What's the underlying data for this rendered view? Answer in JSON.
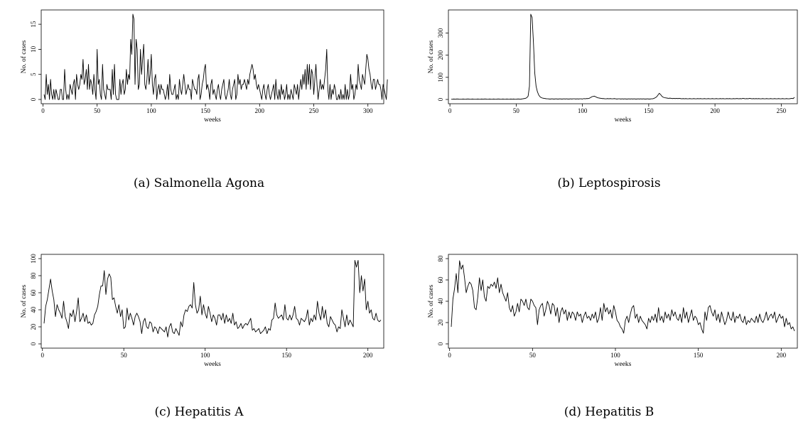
{
  "charts": [
    {
      "caption": "(a) Salmonella Agona",
      "chart_data": {
        "type": "line",
        "xlabel": "weeks",
        "ylabel": "No. of cases",
        "xlim": [
          1,
          312
        ],
        "ylim": [
          0,
          17
        ],
        "xticks": [
          0,
          50,
          100,
          150,
          200,
          250,
          300
        ],
        "yticks": [
          0,
          5,
          10,
          15
        ],
        "grid": false,
        "series": [
          {
            "values": [
              1,
              0,
              5,
              1,
              3,
              0,
              4,
              1,
              0,
              2,
              0,
              2,
              1,
              0,
              0,
              2,
              2,
              0,
              0,
              6,
              2,
              0,
              1,
              0,
              3,
              2,
              1,
              3,
              4,
              0,
              5,
              3,
              2,
              3,
              5,
              4,
              8,
              3,
              4,
              6,
              2,
              7,
              2,
              4,
              3,
              1,
              5,
              2,
              0,
              10,
              3,
              4,
              1,
              0,
              7,
              2,
              1,
              0,
              3,
              2,
              2,
              2,
              0,
              6,
              1,
              7,
              1,
              0,
              0,
              0,
              4,
              1,
              3,
              4,
              1,
              2,
              6,
              3,
              5,
              4,
              12,
              9,
              17,
              16,
              3,
              12,
              10,
              2,
              3,
              10,
              5,
              8,
              11,
              3,
              2,
              4,
              8,
              3,
              5,
              9,
              3,
              1,
              4,
              5,
              0,
              2,
              3,
              1,
              3,
              2,
              2,
              1,
              0,
              1,
              3,
              0,
              5,
              2,
              1,
              1,
              2,
              3,
              0,
              1,
              0,
              4,
              2,
              1,
              3,
              5,
              3,
              1,
              2,
              3,
              2,
              2,
              0,
              4,
              3,
              2,
              2,
              1,
              4,
              5,
              0,
              1,
              3,
              4,
              6,
              7,
              2,
              3,
              2,
              0,
              3,
              4,
              1,
              2,
              1,
              0,
              2,
              3,
              1,
              0,
              2,
              3,
              4,
              1,
              0,
              1,
              2,
              4,
              1,
              0,
              2,
              3,
              4,
              0,
              1,
              5,
              3,
              4,
              2,
              3,
              3,
              4,
              3,
              2,
              4,
              3,
              5,
              6,
              7,
              6,
              4,
              5,
              3,
              2,
              3,
              2,
              1,
              0,
              2,
              3,
              1,
              0,
              2,
              3,
              1,
              0,
              1,
              2,
              3,
              0,
              4,
              1,
              0,
              2,
              0,
              3,
              1,
              2,
              0,
              1,
              3,
              0,
              1,
              0,
              2,
              1,
              0,
              3,
              2,
              1,
              3,
              0,
              2,
              4,
              2,
              5,
              3,
              6,
              2,
              7,
              3,
              7,
              2,
              6,
              5,
              1,
              4,
              7,
              3,
              0,
              2,
              4,
              2,
              3,
              2,
              4,
              6,
              10,
              2,
              0,
              3,
              0,
              2,
              1,
              3,
              2,
              0,
              0,
              1,
              0,
              2,
              0,
              1,
              0,
              3,
              0,
              2,
              0,
              1,
              5,
              2,
              3,
              0,
              1,
              3,
              2,
              7,
              4,
              3,
              2,
              5,
              4,
              3,
              6,
              9,
              8,
              6,
              5,
              3,
              2,
              4,
              4,
              2,
              3,
              4,
              3,
              3,
              2,
              0,
              3,
              2,
              1,
              0,
              4
            ]
          }
        ]
      }
    },
    {
      "caption": "(b) Leptospirosis",
      "chart_data": {
        "type": "line",
        "xlabel": "weeks",
        "ylabel": "No. of cases",
        "xlim": [
          1,
          260
        ],
        "ylim": [
          0,
          385
        ],
        "xticks": [
          0,
          50,
          100,
          150,
          200,
          250
        ],
        "yticks": [
          0,
          100,
          200,
          300
        ],
        "grid": false,
        "series": [
          {
            "values": [
              1,
              1,
              2,
              1,
              2,
              2,
              1,
              1,
              1,
              2,
              1,
              1,
              2,
              2,
              1,
              1,
              2,
              1,
              1,
              1,
              2,
              1,
              1,
              2,
              1,
              2,
              2,
              1,
              1,
              2,
              1,
              1,
              2,
              1,
              1,
              2,
              2,
              1,
              1,
              2,
              1,
              1,
              2,
              1,
              1,
              2,
              1,
              2,
              1,
              1,
              2,
              2,
              1,
              2,
              3,
              4,
              5,
              8,
              15,
              60,
              385,
              370,
              260,
              120,
              60,
              35,
              20,
              12,
              8,
              6,
              5,
              4,
              3,
              3,
              2,
              2,
              3,
              2,
              2,
              3,
              2,
              2,
              3,
              2,
              2,
              3,
              2,
              3,
              2,
              2,
              3,
              2,
              3,
              3,
              2,
              3,
              2,
              3,
              3,
              2,
              4,
              3,
              4,
              4,
              5,
              8,
              12,
              14,
              15,
              12,
              9,
              7,
              6,
              5,
              4,
              4,
              3,
              3,
              4,
              3,
              4,
              3,
              3,
              4,
              3,
              2,
              3,
              3,
              2,
              3,
              2,
              3,
              2,
              2,
              3,
              2,
              3,
              2,
              3,
              2,
              2,
              3,
              2,
              3,
              2,
              3,
              2,
              2,
              3,
              2,
              2,
              3,
              3,
              5,
              8,
              12,
              20,
              28,
              22,
              14,
              10,
              8,
              7,
              6,
              5,
              6,
              5,
              4,
              5,
              4,
              5,
              4,
              5,
              4,
              3,
              4,
              3,
              4,
              3,
              3,
              4,
              3,
              3,
              4,
              3,
              3,
              4,
              3,
              4,
              3,
              3,
              4,
              3,
              3,
              4,
              3,
              3,
              4,
              3,
              3,
              4,
              3,
              3,
              4,
              3,
              4,
              3,
              3,
              4,
              3,
              4,
              3,
              3,
              4,
              3,
              4,
              4,
              3,
              4,
              3,
              5,
              4,
              3,
              4,
              3,
              5,
              4,
              3,
              4,
              3,
              4,
              3,
              4,
              3,
              3,
              4,
              3,
              3,
              4,
              3,
              3,
              4,
              3,
              3,
              4,
              3,
              3,
              4,
              3,
              3,
              4,
              3,
              3,
              4,
              3,
              3,
              4,
              5,
              4,
              10
            ]
          }
        ]
      }
    },
    {
      "caption": "(c) Hepatitis A",
      "chart_data": {
        "type": "line",
        "xlabel": "weeks",
        "ylabel": "No. of cases",
        "xlim": [
          1,
          208
        ],
        "ylim": [
          0,
          100
        ],
        "xticks": [
          0,
          50,
          100,
          150,
          200
        ],
        "yticks": [
          0,
          20,
          40,
          60,
          80,
          100
        ],
        "grid": false,
        "series": [
          {
            "values": [
              24,
              44,
              52,
              64,
              76,
              62,
              52,
              32,
              46,
              40,
              36,
              30,
              50,
              32,
              26,
              18,
              36,
              32,
              40,
              26,
              38,
              54,
              26,
              30,
              36,
              26,
              34,
              24,
              26,
              22,
              24,
              34,
              38,
              44,
              58,
              68,
              68,
              86,
              58,
              76,
              82,
              78,
              52,
              54,
              44,
              36,
              46,
              32,
              40,
              18,
              20,
              42,
              28,
              36,
              30,
              22,
              32,
              36,
              32,
              26,
              12,
              26,
              30,
              20,
              18,
              26,
              24,
              14,
              20,
              18,
              12,
              20,
              18,
              16,
              14,
              20,
              8,
              20,
              24,
              14,
              12,
              18,
              14,
              10,
              26,
              20,
              34,
              40,
              38,
              44,
              46,
              42,
              72,
              46,
              36,
              40,
              56,
              34,
              46,
              36,
              30,
              44,
              36,
              26,
              34,
              30,
              22,
              34,
              34,
              28,
              36,
              24,
              34,
              26,
              30,
              24,
              36,
              22,
              26,
              18,
              20,
              24,
              18,
              22,
              24,
              22,
              26,
              30,
              16,
              18,
              14,
              16,
              18,
              12,
              14,
              16,
              20,
              12,
              18,
              16,
              28,
              30,
              48,
              34,
              30,
              32,
              34,
              28,
              46,
              30,
              28,
              34,
              28,
              34,
              44,
              30,
              28,
              22,
              30,
              28,
              26,
              30,
              40,
              22,
              30,
              26,
              34,
              28,
              50,
              36,
              28,
              44,
              30,
              40,
              24,
              20,
              32,
              28,
              24,
              22,
              14,
              20,
              18,
              40,
              30,
              20,
              34,
              22,
              28,
              24,
              20,
              98,
              90,
              98,
              60,
              80,
              62,
              76,
              40,
              50,
              36,
              40,
              30,
              28,
              36,
              28,
              26,
              28
            ]
          }
        ]
      }
    },
    {
      "caption": "(d) Hepatitis B",
      "chart_data": {
        "type": "line",
        "xlabel": "weeks",
        "ylabel": "No. of cases",
        "xlim": [
          1,
          208
        ],
        "ylim": [
          0,
          80
        ],
        "xticks": [
          0,
          50,
          100,
          150,
          200
        ],
        "yticks": [
          0,
          20,
          40,
          60,
          80
        ],
        "grid": false,
        "series": [
          {
            "values": [
              16,
              42,
              52,
              66,
              48,
              78,
              70,
              74,
              62,
              48,
              54,
              58,
              56,
              50,
              34,
              32,
              44,
              62,
              50,
              60,
              44,
              40,
              54,
              52,
              56,
              54,
              58,
              52,
              62,
              48,
              56,
              48,
              44,
              40,
              48,
              34,
              30,
              36,
              26,
              30,
              38,
              30,
              42,
              40,
              36,
              42,
              34,
              32,
              42,
              40,
              36,
              34,
              18,
              32,
              36,
              38,
              26,
              32,
              40,
              36,
              28,
              38,
              36,
              26,
              34,
              20,
              30,
              34,
              28,
              32,
              22,
              30,
              24,
              30,
              28,
              22,
              30,
              26,
              28,
              20,
              26,
              30,
              24,
              26,
              22,
              28,
              24,
              30,
              20,
              24,
              34,
              22,
              38,
              30,
              34,
              28,
              32,
              24,
              36,
              30,
              22,
              20,
              16,
              14,
              10,
              22,
              26,
              20,
              28,
              34,
              36,
              24,
              28,
              20,
              26,
              22,
              20,
              18,
              14,
              24,
              20,
              26,
              22,
              28,
              20,
              34,
              22,
              26,
              20,
              30,
              24,
              28,
              22,
              32,
              26,
              30,
              24,
              22,
              28,
              20,
              34,
              24,
              30,
              20,
              26,
              32,
              22,
              26,
              24,
              18,
              20,
              14,
              10,
              30,
              22,
              34,
              36,
              30,
              26,
              32,
              22,
              28,
              20,
              30,
              24,
              18,
              22,
              30,
              24,
              22,
              30,
              20,
              26,
              24,
              28,
              22,
              20,
              26,
              18,
              22,
              20,
              24,
              22,
              20,
              26,
              20,
              28,
              22,
              20,
              24,
              30,
              22,
              26,
              28,
              24,
              30,
              20,
              24,
              28,
              24,
              26,
              16,
              24,
              18,
              20,
              14,
              16,
              12
            ]
          }
        ]
      }
    }
  ]
}
